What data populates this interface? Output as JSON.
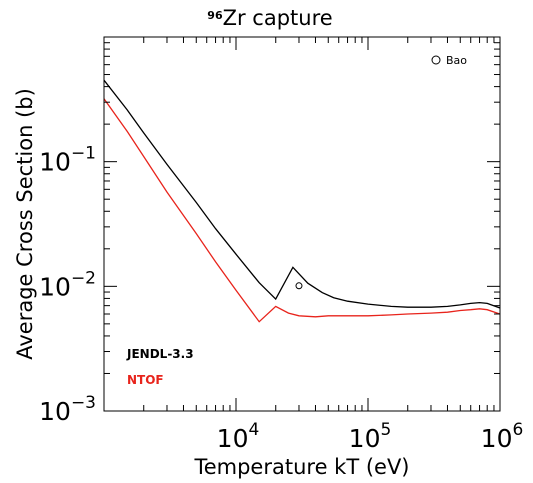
{
  "chart_data": {
    "type": "line",
    "title_sup": "96",
    "title_main": "Zr capture",
    "xlabel": "Temperature kT (eV)",
    "ylabel": "Average Cross Section (b)",
    "xscale": "log",
    "yscale": "log",
    "xlim": [
      1000,
      1000000
    ],
    "ylim": [
      0.001,
      1.0
    ],
    "x_ticks": [
      {
        "value": 10000,
        "base": "10",
        "exp": "4"
      },
      {
        "value": 100000,
        "base": "10",
        "exp": "5"
      },
      {
        "value": 1000000,
        "base": "10",
        "exp": "6"
      }
    ],
    "y_ticks": [
      {
        "value": 0.1,
        "base": "10",
        "exp": "−1"
      },
      {
        "value": 0.01,
        "base": "10",
        "exp": "−2"
      },
      {
        "value": 0.001,
        "base": "10",
        "exp": "−3"
      }
    ],
    "series": [
      {
        "name": "JENDL-3.3",
        "color": "#000000",
        "x": [
          1000,
          1500,
          2000,
          3000,
          5000,
          7000,
          10000,
          15000,
          20000,
          27000,
          35000,
          45000,
          55000,
          70000,
          100000,
          150000,
          200000,
          300000,
          400000,
          500000,
          600000,
          700000,
          800000,
          1000000
        ],
        "y": [
          0.45,
          0.26,
          0.17,
          0.095,
          0.047,
          0.029,
          0.0181,
          0.0107,
          0.0079,
          0.0142,
          0.0106,
          0.0089,
          0.0081,
          0.0076,
          0.0072,
          0.0069,
          0.0068,
          0.0068,
          0.0069,
          0.0071,
          0.0073,
          0.0074,
          0.0073,
          0.0067
        ]
      },
      {
        "name": "NTOF",
        "color": "#e8241c",
        "x": [
          1000,
          1500,
          2000,
          3000,
          5000,
          7000,
          10000,
          15000,
          20000,
          25000,
          30000,
          40000,
          50000,
          70000,
          100000,
          150000,
          200000,
          300000,
          400000,
          500000,
          600000,
          700000,
          800000,
          1000000
        ],
        "y": [
          0.32,
          0.175,
          0.11,
          0.057,
          0.0265,
          0.0157,
          0.0093,
          0.0052,
          0.0069,
          0.0061,
          0.0058,
          0.0057,
          0.0058,
          0.0058,
          0.0058,
          0.0059,
          0.006,
          0.0061,
          0.0062,
          0.0064,
          0.0065,
          0.0066,
          0.0065,
          0.006
        ]
      }
    ],
    "points": [
      {
        "name": "Bao",
        "x": 30000,
        "y": 0.0101,
        "err_low": 0.0095,
        "err_high": 0.0107
      }
    ],
    "legend_position": "bottom-left",
    "point_label_position": "top-right",
    "grid": false
  }
}
